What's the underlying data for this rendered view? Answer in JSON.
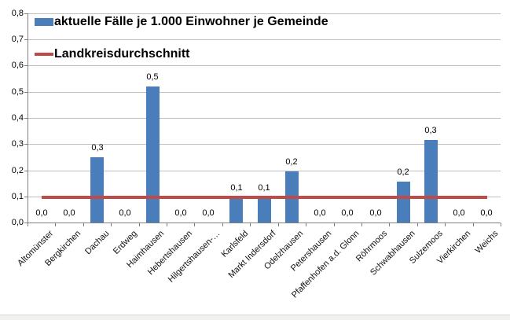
{
  "chart_data": {
    "type": "bar",
    "title": "",
    "categories": [
      "Altomünster",
      "Bergkirchen",
      "Dachau",
      "Erdweg",
      "Haimhausen",
      "Hebertshausen",
      "Hilgertshausen-…",
      "Karlsfeld",
      "Markt Indersdorf",
      "Odelzhausen",
      "Petershausen",
      "Pfaffenhofen a.d. Glonn",
      "Röhrmoos",
      "Schwabhausen",
      "Sulzemoos",
      "Vierkirchen",
      "Weichs"
    ],
    "series": [
      {
        "name": "aktuelle Fälle je 1.000 Einwohner je Gemeinde",
        "type": "bar",
        "values": [
          0.0,
          0.0,
          0.25,
          0.0,
          0.52,
          0.0,
          0.0,
          0.095,
          0.095,
          0.195,
          0.0,
          0.0,
          0.0,
          0.155,
          0.315,
          0.0,
          0.0
        ],
        "labels": [
          "0,0",
          "0,0",
          "0,3",
          "0,0",
          "0,5",
          "0,0",
          "0,0",
          "0,1",
          "0,1",
          "0,2",
          "0,0",
          "0,0",
          "0,0",
          "0,2",
          "0,3",
          "0,0",
          "0,0"
        ],
        "color": "#4A7EBB"
      },
      {
        "name": "Landkreisdurchschnitt",
        "type": "line",
        "value": 0.097,
        "color": "#BE4B48"
      }
    ],
    "ylim": [
      0.0,
      0.8
    ],
    "ytick_step": 0.1,
    "ytick_labels": [
      "0,0",
      "0,1",
      "0,2",
      "0,3",
      "0,4",
      "0,5",
      "0,6",
      "0,7",
      "0,8"
    ],
    "grid": true,
    "legend_position": "top-left-overlay"
  },
  "colors": {
    "bar": "#4A7EBB",
    "line": "#BE4B48",
    "grid": "#BFBFBF",
    "axis": "#808080",
    "text": "#000000"
  }
}
